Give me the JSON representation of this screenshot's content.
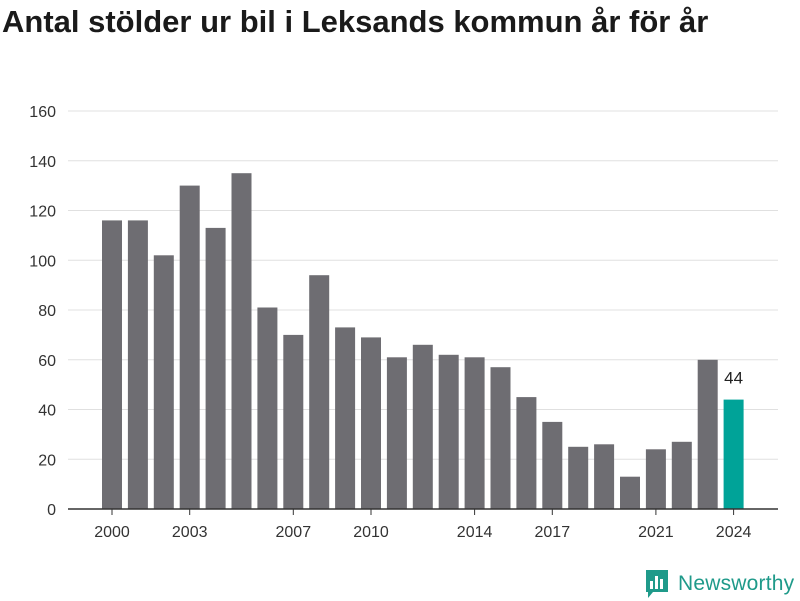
{
  "title": "Antal stölder ur bil i Leksands kommun år för år",
  "brand": {
    "name": "Newsworthy",
    "icon": "newsworthy-logo-icon"
  },
  "colors": {
    "bar": "#6e6d72",
    "highlight": "#00a398",
    "grid": "#e0e0e0",
    "axis": "#333333",
    "brand": "#1f9a8a"
  },
  "chart_data": {
    "type": "bar",
    "title": "Antal stölder ur bil i Leksands kommun år för år",
    "xlabel": "",
    "ylabel": "",
    "categories": [
      2000,
      2001,
      2002,
      2003,
      2004,
      2005,
      2006,
      2007,
      2008,
      2009,
      2010,
      2011,
      2012,
      2013,
      2014,
      2015,
      2016,
      2017,
      2018,
      2019,
      2020,
      2021,
      2022,
      2023,
      2024
    ],
    "values": [
      116,
      116,
      102,
      130,
      113,
      135,
      81,
      70,
      94,
      73,
      69,
      61,
      66,
      62,
      61,
      57,
      45,
      35,
      25,
      26,
      13,
      24,
      27,
      60,
      44
    ],
    "x_tick_labels": [
      2000,
      2003,
      2007,
      2010,
      2014,
      2017,
      2021,
      2024
    ],
    "ylim": [
      0,
      160
    ],
    "y_ticks": [
      0,
      20,
      40,
      60,
      80,
      100,
      120,
      140,
      160
    ],
    "grid": true,
    "highlight": {
      "category": 2024,
      "label": "44"
    }
  }
}
